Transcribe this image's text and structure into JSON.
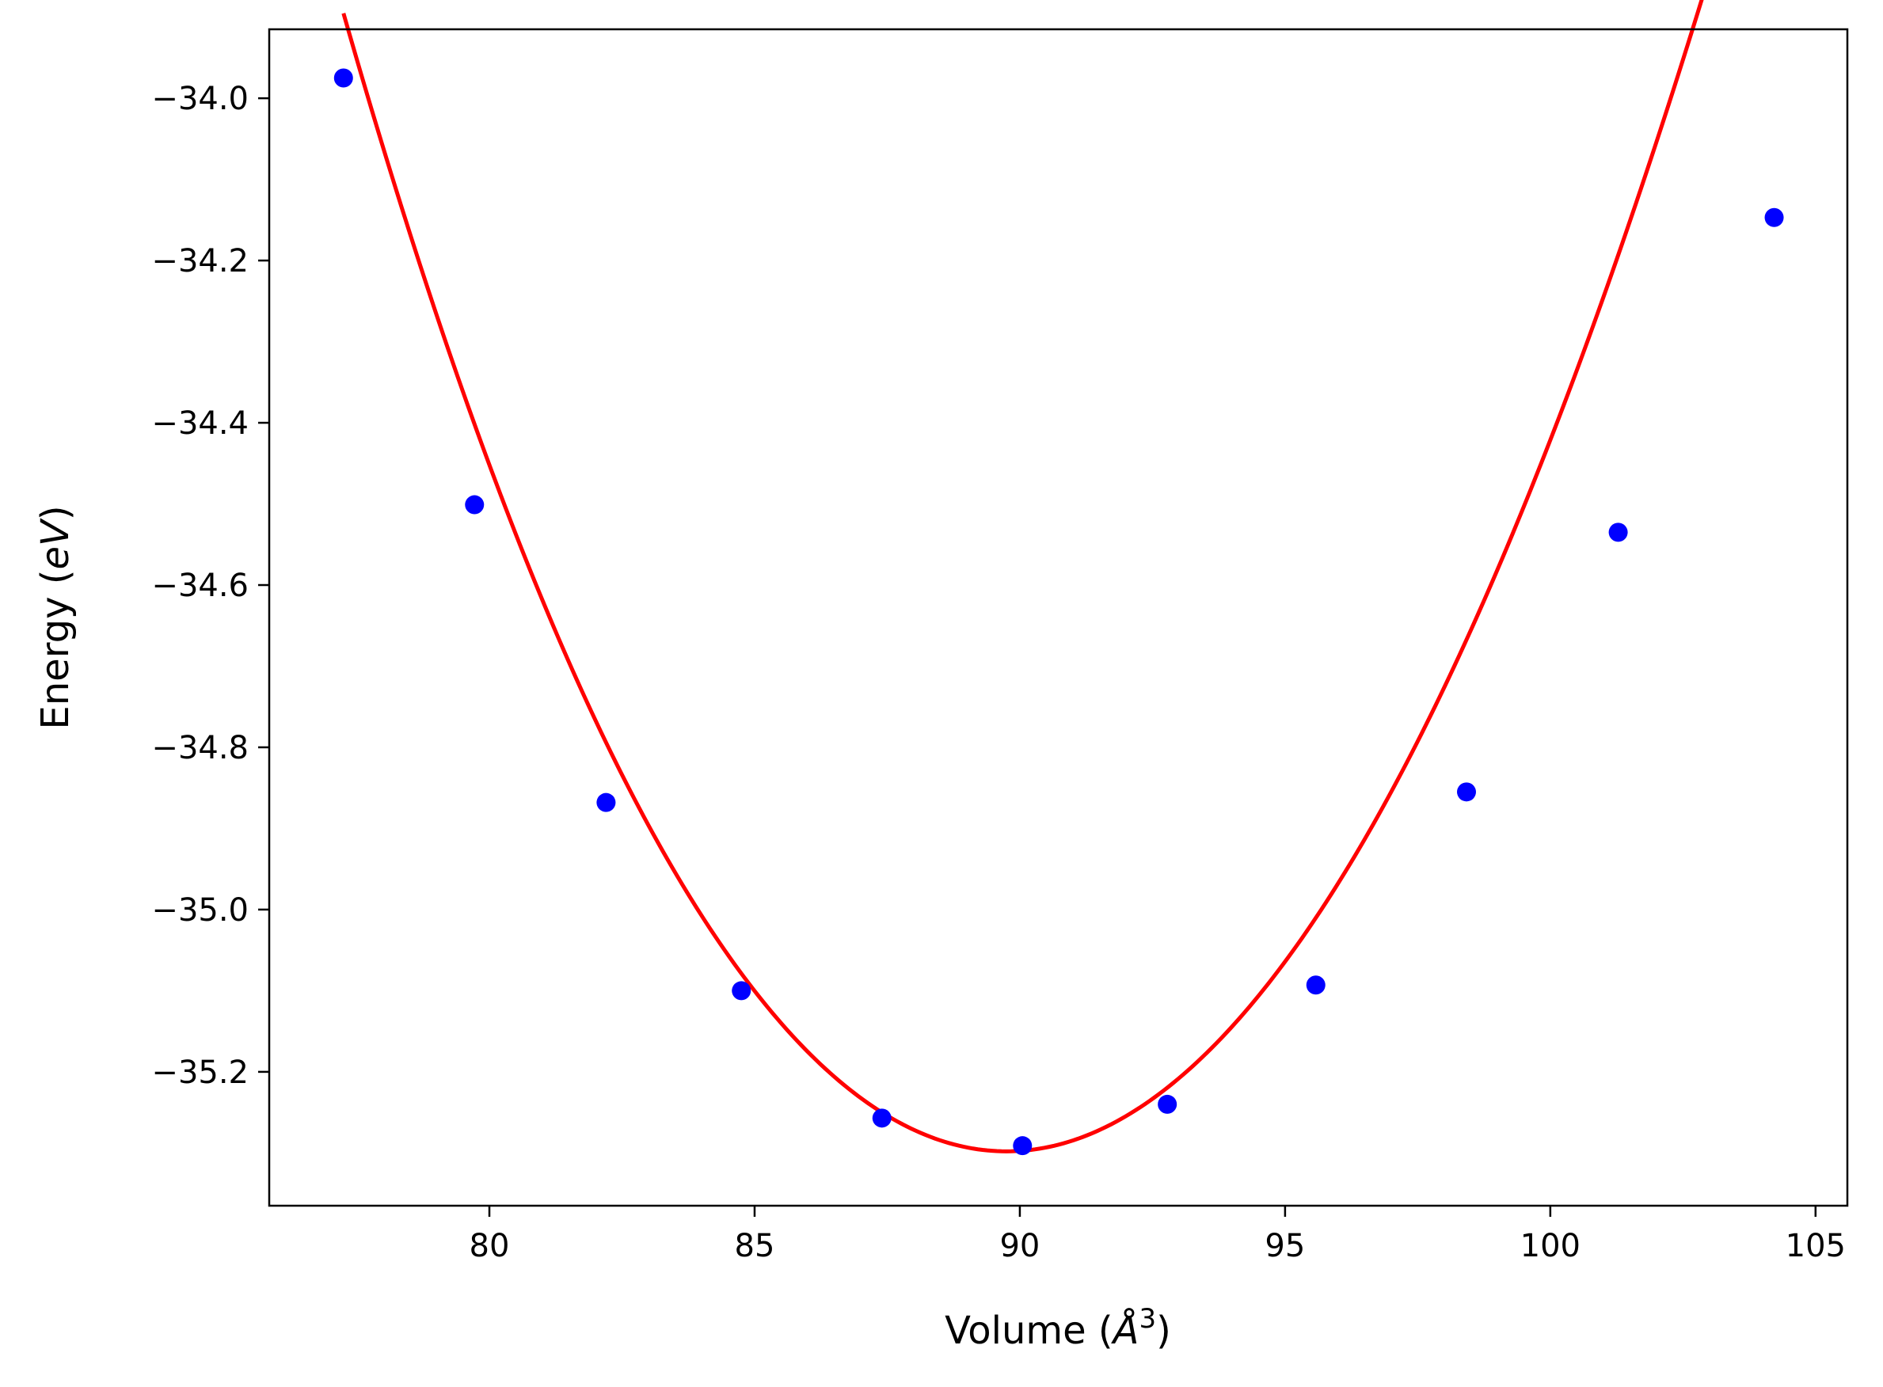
{
  "chart_data": {
    "type": "scatter",
    "xlabel": "Volume (Å³)",
    "xlabel_parts": {
      "main": "Volume (",
      "unit": "Å",
      "exponent": "3",
      "close": ")"
    },
    "ylabel": "Energy (eV)",
    "ylabel_parts": {
      "main": "Energy (",
      "unit": "eV",
      "close": ")"
    },
    "xlim": [
      75.85,
      105.6
    ],
    "ylim": [
      -35.365,
      -33.915
    ],
    "grid": false,
    "x_ticks": [
      80,
      85,
      90,
      95,
      100,
      105
    ],
    "x_tick_labels": [
      "80",
      "85",
      "90",
      "95",
      "100",
      "105"
    ],
    "y_ticks": [
      -34.0,
      -34.2,
      -34.4,
      -34.6,
      -34.8,
      -35.0,
      -35.2
    ],
    "y_tick_labels": [
      "−34.0",
      "−34.2",
      "−34.4",
      "−34.6",
      "−34.8",
      "−35.0",
      "−35.2"
    ],
    "series": [
      {
        "kind": "points",
        "color": "#0000ff",
        "x": [
          77.25,
          79.72,
          82.2,
          84.75,
          87.4,
          90.05,
          92.78,
          95.58,
          98.42,
          101.28,
          104.22
        ],
        "y": [
          -33.975,
          -34.501,
          -34.868,
          -35.1,
          -35.257,
          -35.291,
          -35.24,
          -35.093,
          -34.855,
          -34.535,
          -34.147
        ]
      },
      {
        "kind": "fit-curve",
        "color": "#ff0000",
        "model": "cubic",
        "x_range": [
          77.25,
          104.22
        ],
        "vertex_x": 89.75,
        "vertex_y": -35.298,
        "a": 0.00863,
        "b": -2.78e-05
      }
    ]
  },
  "colors": {
    "points": "#0000ff",
    "curve": "#ff0000",
    "axes": "#000000",
    "background": "#ffffff"
  }
}
